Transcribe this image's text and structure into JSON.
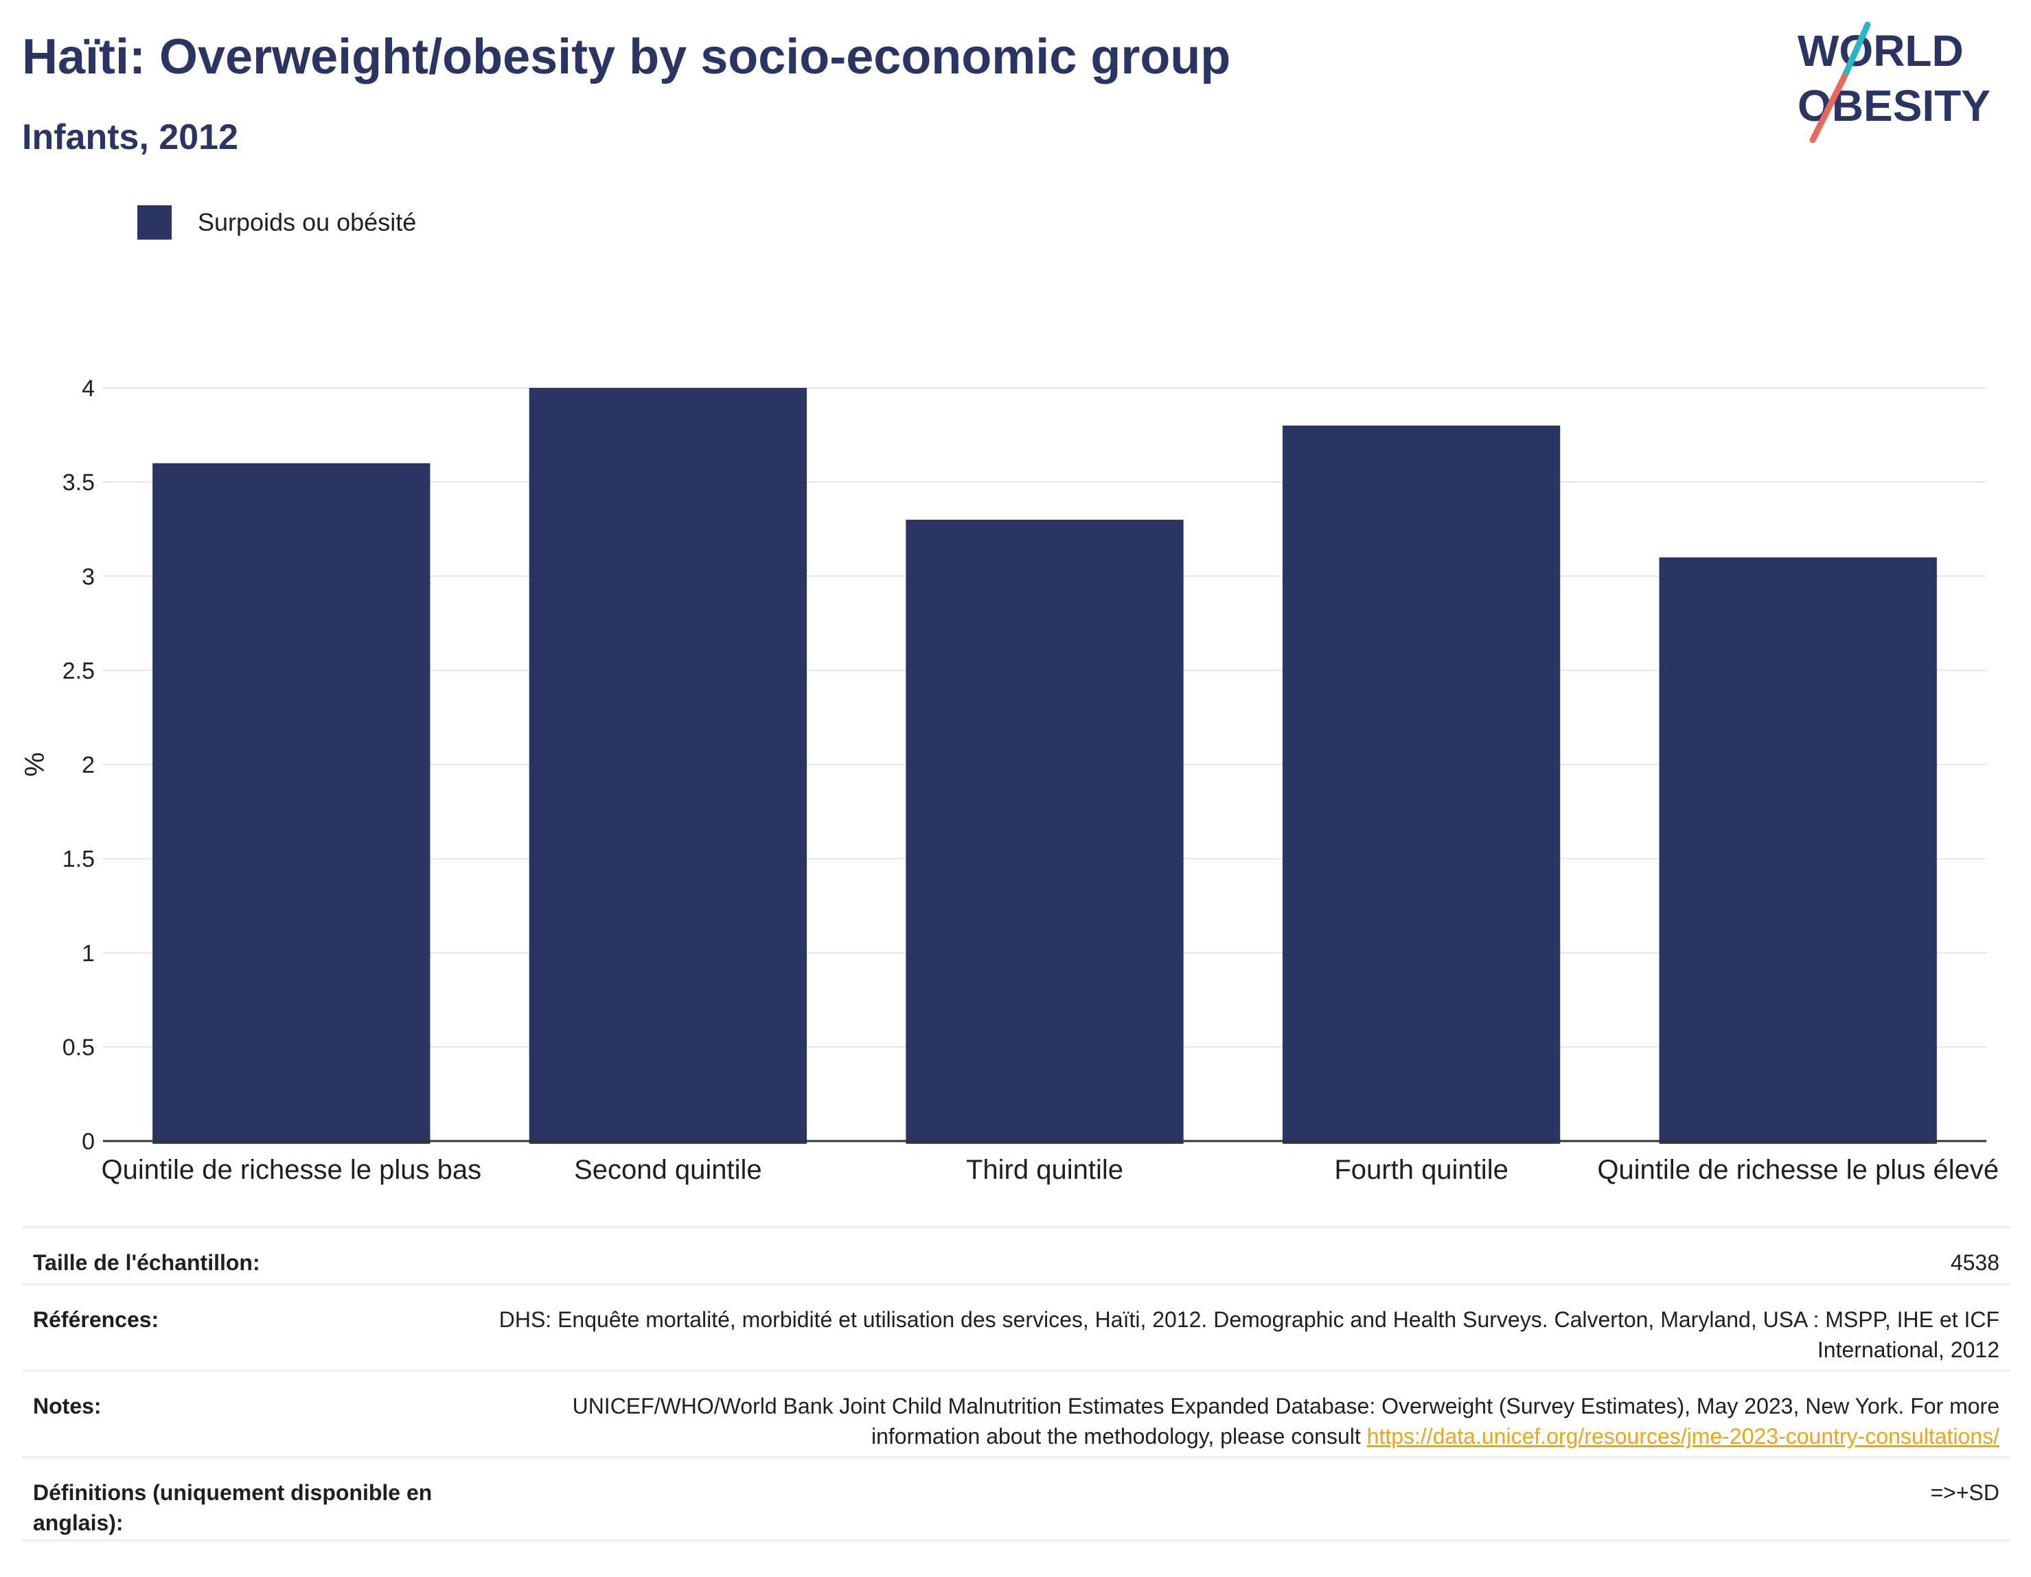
{
  "header": {
    "title": "Haïti: Overweight/obesity by socio-economic group",
    "subtitle": "Infants, 2012"
  },
  "logo": {
    "line1": "WORLD",
    "line2": "OBESITY",
    "colors": {
      "text": "#2a3563",
      "slash_top": "#2bb5c5",
      "slash_bottom": "#e8695b"
    }
  },
  "colors": {
    "bar": "#2a3563",
    "grid": "#e6e6e6",
    "axis": "#333333",
    "link": "#e6a817"
  },
  "chart_data": {
    "type": "bar",
    "title": "Haïti: Overweight/obesity by socio-economic group",
    "subtitle": "Infants, 2012",
    "ylabel": "%",
    "xlabel": "",
    "ylim": [
      0,
      4
    ],
    "yticks": [
      0,
      0.5,
      1,
      1.5,
      2,
      2.5,
      3,
      3.5,
      4
    ],
    "grid": true,
    "legend_position": "top-left",
    "categories": [
      "Quintile de richesse le plus bas",
      "Second quintile",
      "Third quintile",
      "Fourth quintile",
      "Quintile de richesse le plus élevé"
    ],
    "series": [
      {
        "name": "Surpoids ou obésité",
        "values": [
          3.6,
          4.0,
          3.3,
          3.8,
          3.1
        ]
      }
    ]
  },
  "info": {
    "sample_label": "Taille de l'échantillon:",
    "sample_value": "4538",
    "references_label": "Références:",
    "references_value": "DHS: Enquête mortalité, morbidité et utilisation des services, Haïti, 2012. Demographic and Health Surveys. Calverton, Maryland, USA : MSPP, IHE et ICF International, 2012",
    "notes_label": "Notes:",
    "notes_value": "UNICEF/WHO/World Bank Joint Child Malnutrition Estimates Expanded Database: Overweight (Survey Estimates), May 2023, New York. For more information about the methodology, please consult",
    "notes_link": "https://data.unicef.org/resources/jme-2023-country-consultations/",
    "definitions_label": "Définitions (uniquement disponible en anglais):",
    "definitions_value": "=>+SD"
  }
}
